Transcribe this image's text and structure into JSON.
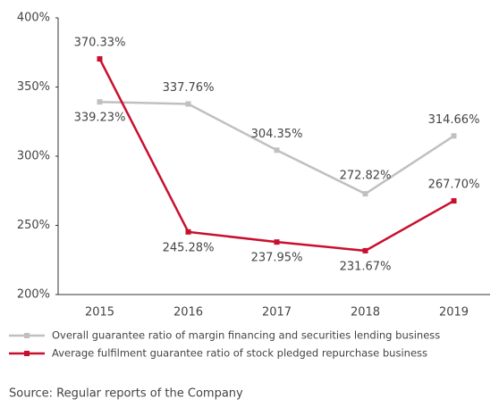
{
  "chart_data": {
    "type": "line",
    "categories": [
      "2015",
      "2016",
      "2017",
      "2018",
      "2019"
    ],
    "series": [
      {
        "name": "Overall guarantee ratio of margin financing and securities lending business",
        "color": "#c0c0c0",
        "values": [
          339.23,
          337.76,
          304.35,
          272.82,
          314.66
        ],
        "value_labels": [
          "339.23%",
          "337.76%",
          "304.35%",
          "272.82%",
          "314.66%"
        ]
      },
      {
        "name": "Average fulfilment guarantee ratio of stock pledged repurchase business",
        "color": "#c8102e",
        "values": [
          370.33,
          245.28,
          237.95,
          231.67,
          267.7
        ],
        "value_labels": [
          "370.33%",
          "245.28%",
          "237.95%",
          "231.67%",
          "267.70%"
        ]
      }
    ],
    "ylim": [
      200,
      400
    ],
    "yticks": [
      {
        "value": 200,
        "label": "200%"
      },
      {
        "value": 250,
        "label": "250%"
      },
      {
        "value": 300,
        "label": "300%"
      },
      {
        "value": 350,
        "label": "350%"
      },
      {
        "value": 400,
        "label": "400%"
      }
    ],
    "grid": false,
    "legend": "bottom",
    "source": "Source: Regular reports of the Company"
  }
}
